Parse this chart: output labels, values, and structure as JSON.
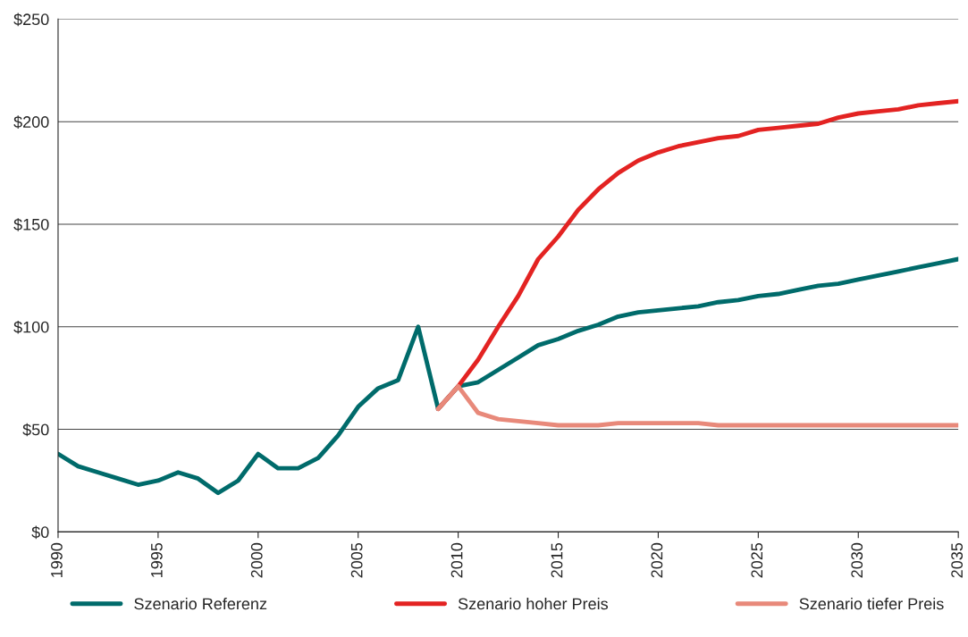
{
  "chart_data": {
    "type": "line",
    "x": [
      1990,
      1991,
      1992,
      1993,
      1994,
      1995,
      1996,
      1997,
      1998,
      1999,
      2000,
      2001,
      2002,
      2003,
      2004,
      2005,
      2006,
      2007,
      2008,
      2009,
      2010,
      2011,
      2012,
      2013,
      2014,
      2015,
      2016,
      2017,
      2018,
      2019,
      2020,
      2021,
      2022,
      2023,
      2024,
      2025,
      2026,
      2027,
      2028,
      2029,
      2030,
      2031,
      2032,
      2033,
      2034,
      2035
    ],
    "series": [
      {
        "name": "Szenario Referenz",
        "color": "#006b6b",
        "values": [
          38,
          32,
          29,
          26,
          23,
          25,
          29,
          26,
          19,
          25,
          38,
          31,
          31,
          36,
          47,
          61,
          70,
          74,
          100,
          60,
          71,
          73,
          79,
          85,
          91,
          94,
          98,
          101,
          105,
          107,
          108,
          109,
          110,
          112,
          113,
          115,
          116,
          118,
          120,
          121,
          123,
          125,
          127,
          129,
          131,
          133
        ]
      },
      {
        "name": "Szenario hoher Preis",
        "color": "#e32322",
        "x": [
          2009,
          2010,
          2011,
          2012,
          2013,
          2014,
          2015,
          2016,
          2017,
          2018,
          2019,
          2020,
          2021,
          2022,
          2023,
          2024,
          2025,
          2026,
          2027,
          2028,
          2029,
          2030,
          2031,
          2032,
          2033,
          2034,
          2035
        ],
        "values": [
          60,
          71,
          84,
          100,
          115,
          133,
          144,
          157,
          167,
          175,
          181,
          185,
          188,
          190,
          192,
          193,
          196,
          197,
          198,
          199,
          202,
          204,
          205,
          206,
          208,
          209,
          210
        ]
      },
      {
        "name": "Szenario tiefer Preis",
        "color": "#e8897a",
        "x": [
          2009,
          2010,
          2011,
          2012,
          2013,
          2014,
          2015,
          2016,
          2017,
          2018,
          2019,
          2020,
          2021,
          2022,
          2023,
          2024,
          2025,
          2026,
          2027,
          2028,
          2029,
          2030,
          2031,
          2032,
          2033,
          2034,
          2035
        ],
        "values": [
          60,
          71,
          58,
          55,
          54,
          53,
          52,
          52,
          52,
          53,
          53,
          53,
          53,
          53,
          52,
          52,
          52,
          52,
          52,
          52,
          52,
          52,
          52,
          52,
          52,
          52,
          52
        ]
      }
    ],
    "xlim": [
      1990,
      2035
    ],
    "xticks": [
      1990,
      1995,
      2000,
      2005,
      2010,
      2015,
      2020,
      2025,
      2030,
      2035
    ],
    "ylim": [
      0,
      250
    ],
    "yticks": [
      {
        "value": 0,
        "label": "$0"
      },
      {
        "value": 50,
        "label": "$50"
      },
      {
        "value": 100,
        "label": "$100"
      },
      {
        "value": 150,
        "label": "$150"
      },
      {
        "value": 200,
        "label": "$200"
      },
      {
        "value": 250,
        "label": "$250"
      }
    ],
    "grid": "y",
    "legend": "bottom",
    "line_style": "solid",
    "marker": "none"
  }
}
